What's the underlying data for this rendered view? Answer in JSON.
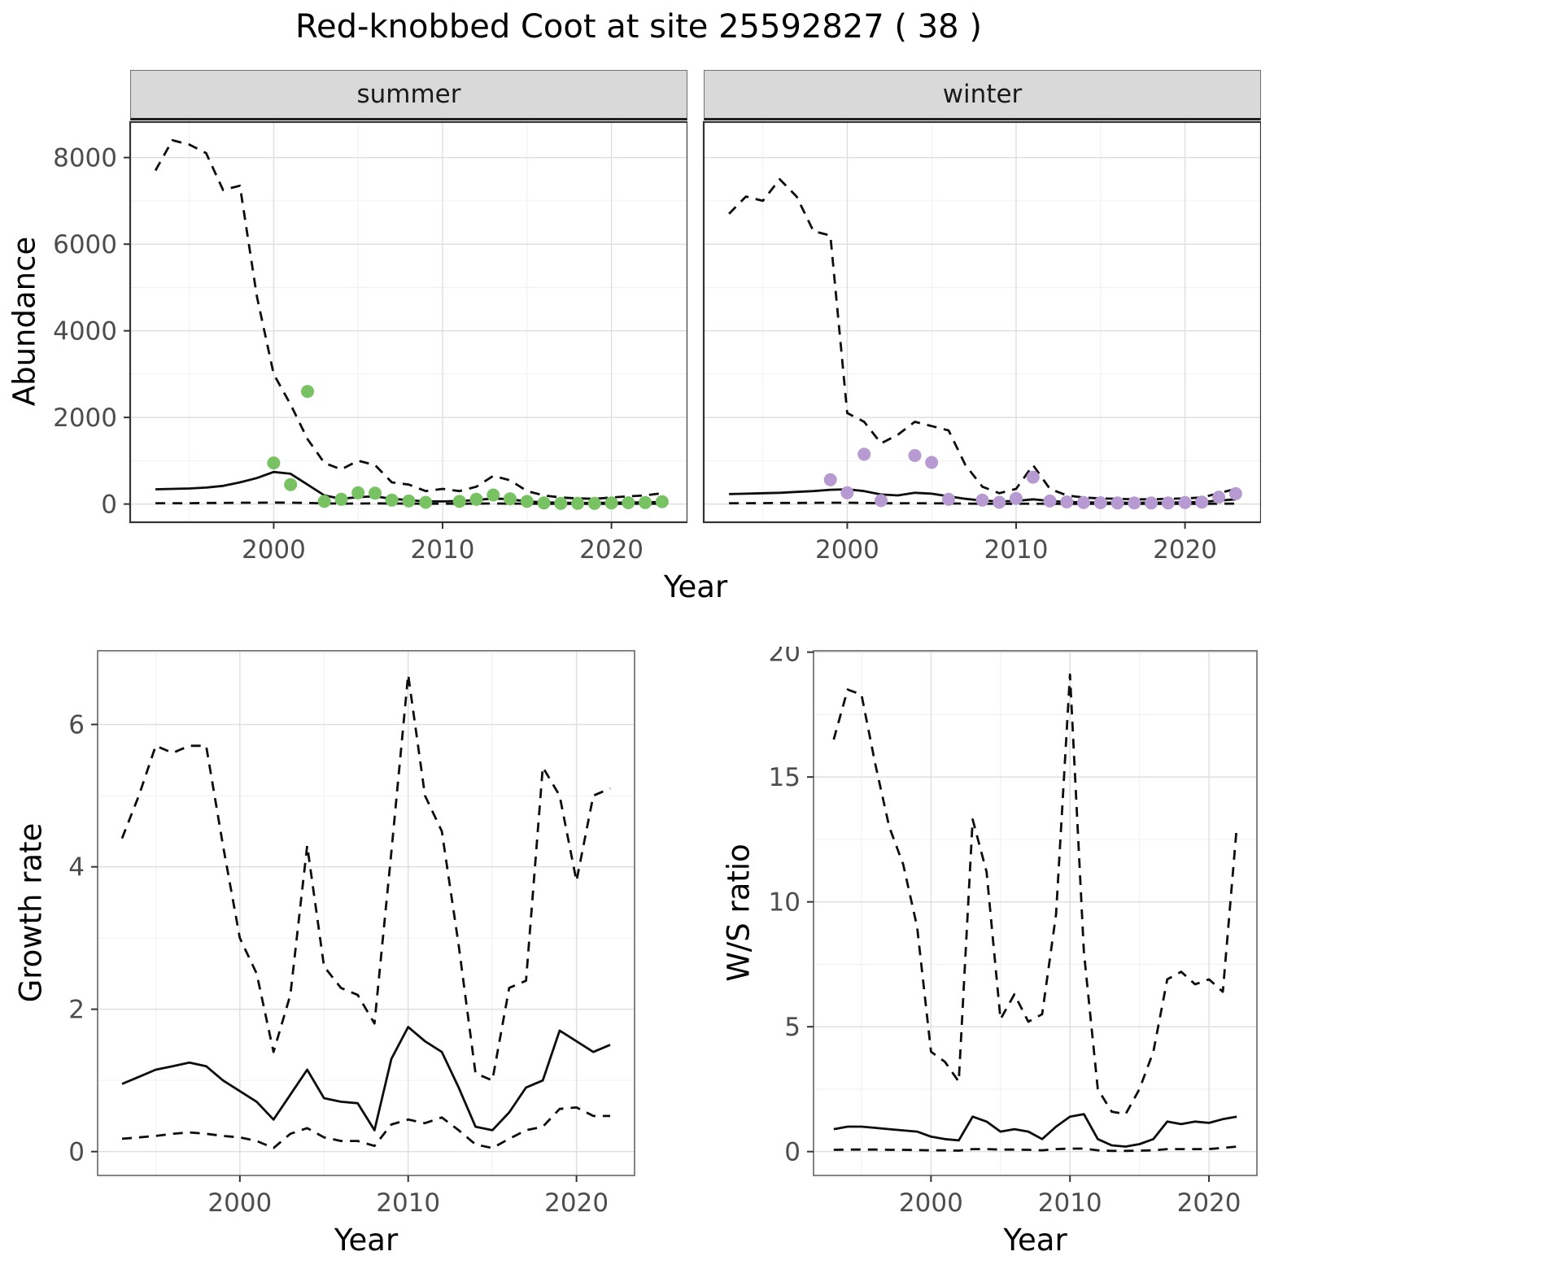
{
  "title": "Red-knobbed Coot at site 25592827 ( 38 )",
  "colors": {
    "points_summer": "#78c263",
    "points_winter": "#b79ad2",
    "line": "#0d0d0d",
    "grid_major": "#dedede",
    "grid_minor": "#f0f0f0",
    "strip_bg": "#d9d9d9",
    "panel_border_top": "#333333",
    "panel_border_bottom": "#666666",
    "tick_text": "#4d4d4d"
  },
  "chart_data": [
    {
      "id": "abundance_summer",
      "type": "line",
      "facet": "summer",
      "xlabel": "Year",
      "ylabel": "Abundance",
      "xlim": [
        1991.5,
        2024.5
      ],
      "ylim": [
        -420,
        8820
      ],
      "xticks": [
        2000,
        2010,
        2020
      ],
      "yticks": [
        0,
        2000,
        4000,
        6000,
        8000
      ],
      "x": [
        1993,
        1994,
        1995,
        1996,
        1997,
        1998,
        1999,
        2000,
        2001,
        2002,
        2003,
        2004,
        2005,
        2006,
        2007,
        2008,
        2009,
        2010,
        2011,
        2012,
        2013,
        2014,
        2015,
        2016,
        2017,
        2018,
        2019,
        2020,
        2021,
        2022,
        2023
      ],
      "series": [
        {
          "name": "upper_ci",
          "style": "dashed",
          "values": [
            7700,
            8400,
            8300,
            8100,
            7250,
            7350,
            4800,
            3000,
            2300,
            1500,
            950,
            800,
            1000,
            900,
            500,
            450,
            300,
            350,
            300,
            400,
            650,
            550,
            300,
            200,
            150,
            130,
            120,
            150,
            180,
            200,
            250
          ]
        },
        {
          "name": "mean",
          "style": "solid",
          "values": [
            340,
            350,
            360,
            380,
            420,
            500,
            600,
            740,
            700,
            450,
            200,
            120,
            160,
            180,
            120,
            90,
            60,
            60,
            70,
            90,
            130,
            110,
            60,
            40,
            30,
            25,
            25,
            30,
            35,
            40,
            50
          ]
        },
        {
          "name": "lower_ci",
          "style": "dashed",
          "values": [
            20,
            20,
            20,
            25,
            25,
            30,
            30,
            35,
            30,
            25,
            15,
            10,
            12,
            15,
            12,
            10,
            8,
            8,
            8,
            10,
            12,
            10,
            8,
            6,
            5,
            5,
            5,
            6,
            6,
            8,
            8
          ]
        }
      ],
      "points": {
        "name": "observed_counts",
        "color": "#78c263",
        "x": [
          2000,
          2001,
          2002,
          2003,
          2004,
          2005,
          2006,
          2007,
          2008,
          2009,
          2011,
          2012,
          2013,
          2014,
          2015,
          2016,
          2017,
          2018,
          2019,
          2020,
          2021,
          2022,
          2023
        ],
        "values": [
          950,
          450,
          2600,
          60,
          110,
          260,
          250,
          90,
          70,
          40,
          60,
          110,
          210,
          120,
          60,
          25,
          15,
          15,
          15,
          25,
          30,
          35,
          55
        ]
      }
    },
    {
      "id": "abundance_winter",
      "type": "line",
      "facet": "winter",
      "xlabel": "Year",
      "ylabel": "Abundance",
      "xlim": [
        1991.5,
        2024.5
      ],
      "ylim": [
        -420,
        8820
      ],
      "xticks": [
        2000,
        2010,
        2020
      ],
      "yticks": [
        0,
        2000,
        4000,
        6000,
        8000
      ],
      "x": [
        1993,
        1994,
        1995,
        1996,
        1997,
        1998,
        1999,
        2000,
        2001,
        2002,
        2003,
        2004,
        2005,
        2006,
        2007,
        2008,
        2009,
        2010,
        2011,
        2012,
        2013,
        2014,
        2015,
        2016,
        2017,
        2018,
        2019,
        2020,
        2021,
        2022,
        2023
      ],
      "series": [
        {
          "name": "upper_ci",
          "style": "dashed",
          "values": [
            6700,
            7100,
            7000,
            7500,
            7100,
            6300,
            6200,
            2100,
            1900,
            1400,
            1600,
            1900,
            1800,
            1700,
            900,
            400,
            250,
            350,
            900,
            350,
            200,
            150,
            130,
            120,
            110,
            110,
            120,
            130,
            150,
            250,
            350
          ]
        },
        {
          "name": "mean",
          "style": "solid",
          "values": [
            230,
            240,
            250,
            260,
            280,
            300,
            330,
            340,
            300,
            220,
            200,
            260,
            240,
            180,
            120,
            80,
            60,
            70,
            110,
            70,
            50,
            40,
            35,
            30,
            30,
            30,
            35,
            40,
            50,
            80,
            110
          ]
        },
        {
          "name": "lower_ci",
          "style": "dashed",
          "values": [
            20,
            20,
            22,
            25,
            25,
            28,
            30,
            30,
            25,
            20,
            18,
            20,
            18,
            15,
            10,
            8,
            6,
            6,
            8,
            6,
            5,
            4,
            4,
            4,
            4,
            4,
            4,
            5,
            5,
            8,
            10
          ]
        }
      ],
      "points": {
        "name": "observed_counts",
        "color": "#b79ad2",
        "x": [
          1999,
          2000,
          2001,
          2002,
          2004,
          2005,
          2006,
          2008,
          2009,
          2010,
          2011,
          2012,
          2013,
          2014,
          2015,
          2016,
          2017,
          2018,
          2019,
          2020,
          2021,
          2022,
          2023
        ],
        "values": [
          560,
          260,
          1150,
          80,
          1120,
          960,
          110,
          90,
          40,
          130,
          620,
          70,
          50,
          35,
          30,
          25,
          25,
          25,
          25,
          35,
          45,
          160,
          240
        ]
      }
    },
    {
      "id": "growth_rate",
      "type": "line",
      "facet": "",
      "xlabel": "Year",
      "ylabel": "Growth rate",
      "xlim": [
        1991.55,
        2023.45
      ],
      "ylim": [
        -0.335,
        7.035
      ],
      "xticks": [
        2000,
        2010,
        2020
      ],
      "yticks": [
        0,
        2,
        4,
        6
      ],
      "x": [
        1993,
        1994,
        1995,
        1996,
        1997,
        1998,
        1999,
        2000,
        2001,
        2002,
        2003,
        2004,
        2005,
        2006,
        2007,
        2008,
        2009,
        2010,
        2011,
        2012,
        2013,
        2014,
        2015,
        2016,
        2017,
        2018,
        2019,
        2020,
        2021,
        2022
      ],
      "series": [
        {
          "name": "upper_ci",
          "style": "dashed",
          "values": [
            4.4,
            5.0,
            5.7,
            5.6,
            5.7,
            5.7,
            4.3,
            3.0,
            2.5,
            1.4,
            2.2,
            4.3,
            2.6,
            2.3,
            2.2,
            1.8,
            4.2,
            6.7,
            5.0,
            4.5,
            2.9,
            1.1,
            1.0,
            2.3,
            2.4,
            5.4,
            5.0,
            3.8,
            5.0,
            5.1
          ]
        },
        {
          "name": "mean",
          "style": "solid",
          "values": [
            0.95,
            1.05,
            1.15,
            1.2,
            1.25,
            1.2,
            1.0,
            0.85,
            0.7,
            0.45,
            0.8,
            1.15,
            0.75,
            0.7,
            0.68,
            0.3,
            1.3,
            1.75,
            1.55,
            1.4,
            0.9,
            0.35,
            0.3,
            0.55,
            0.9,
            1.0,
            1.7,
            1.55,
            1.4,
            1.5
          ]
        },
        {
          "name": "lower_ci",
          "style": "dashed",
          "values": [
            0.18,
            0.2,
            0.22,
            0.25,
            0.27,
            0.25,
            0.22,
            0.2,
            0.15,
            0.05,
            0.25,
            0.33,
            0.2,
            0.15,
            0.15,
            0.08,
            0.38,
            0.45,
            0.4,
            0.48,
            0.3,
            0.1,
            0.05,
            0.18,
            0.3,
            0.35,
            0.6,
            0.62,
            0.5,
            0.5
          ]
        }
      ]
    },
    {
      "id": "ws_ratio",
      "type": "line",
      "facet": "",
      "xlabel": "Year",
      "ylabel": "W/S ratio",
      "xlim": [
        1991.55,
        2023.45
      ],
      "ylim": [
        -0.955,
        20.055
      ],
      "xticks": [
        2000,
        2010,
        2020
      ],
      "yticks": [
        0,
        5,
        10,
        15,
        20
      ],
      "x": [
        1993,
        1994,
        1995,
        1996,
        1997,
        1998,
        1999,
        2000,
        2001,
        2002,
        2003,
        2004,
        2005,
        2006,
        2007,
        2008,
        2009,
        2010,
        2011,
        2012,
        2013,
        2014,
        2015,
        2016,
        2017,
        2018,
        2019,
        2020,
        2021,
        2022
      ],
      "series": [
        {
          "name": "upper_ci",
          "style": "dashed",
          "values": [
            16.5,
            18.5,
            18.3,
            15.5,
            13.0,
            11.5,
            9.0,
            4.0,
            3.6,
            2.8,
            13.3,
            11.2,
            5.3,
            6.3,
            5.2,
            5.5,
            9.5,
            19.1,
            8.0,
            2.5,
            1.6,
            1.5,
            2.5,
            4.0,
            6.9,
            7.2,
            6.7,
            6.9,
            6.4,
            13.0
          ]
        },
        {
          "name": "mean",
          "style": "solid",
          "values": [
            0.9,
            1.0,
            1.0,
            0.95,
            0.9,
            0.85,
            0.8,
            0.6,
            0.5,
            0.45,
            1.4,
            1.2,
            0.8,
            0.9,
            0.8,
            0.5,
            1.0,
            1.4,
            1.5,
            0.5,
            0.25,
            0.2,
            0.3,
            0.5,
            1.2,
            1.1,
            1.2,
            1.15,
            1.3,
            1.4
          ]
        },
        {
          "name": "lower_ci",
          "style": "dashed",
          "values": [
            0.07,
            0.08,
            0.08,
            0.08,
            0.07,
            0.07,
            0.06,
            0.05,
            0.05,
            0.04,
            0.1,
            0.1,
            0.08,
            0.08,
            0.07,
            0.05,
            0.1,
            0.12,
            0.12,
            0.05,
            0.03,
            0.03,
            0.04,
            0.05,
            0.1,
            0.1,
            0.1,
            0.1,
            0.15,
            0.2
          ]
        }
      ]
    }
  ]
}
